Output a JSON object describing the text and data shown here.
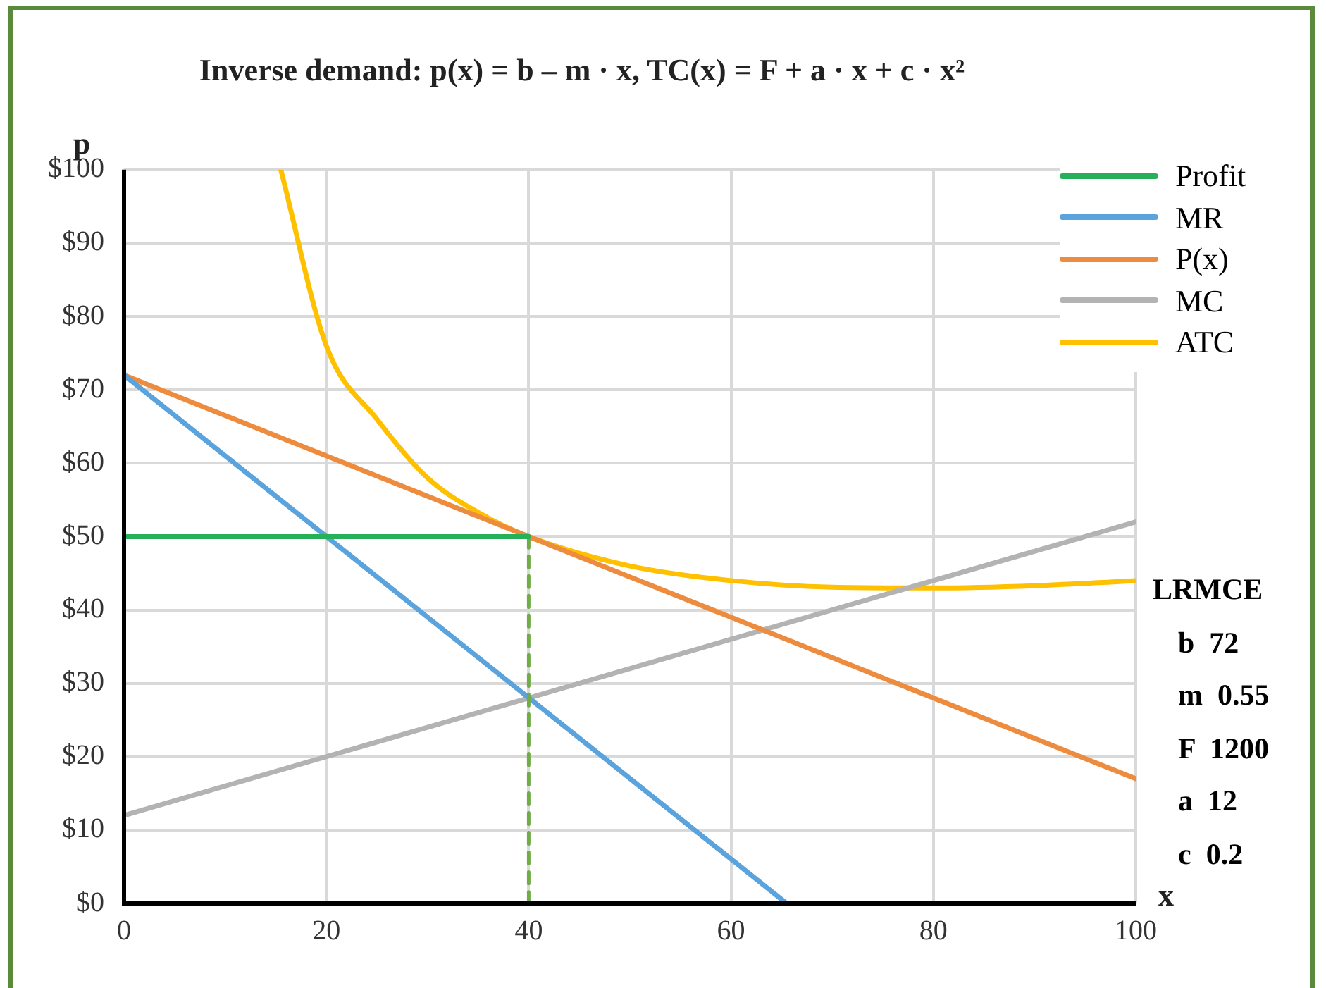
{
  "chart_data": {
    "type": "line",
    "title": "Inverse demand: p(x) = b – m · x, TC(x) = F + a · x + c · x²",
    "xlabel": "x",
    "ylabel": "p",
    "xlim": [
      0,
      100
    ],
    "xticks": [
      0,
      20,
      40,
      60,
      80,
      100
    ],
    "ylim": [
      0,
      100
    ],
    "yticks": [
      {
        "value": 0,
        "label": "$0"
      },
      {
        "value": 10,
        "label": "$10"
      },
      {
        "value": 20,
        "label": "$20"
      },
      {
        "value": 30,
        "label": "$30"
      },
      {
        "value": 40,
        "label": "$40"
      },
      {
        "value": 50,
        "label": "$50"
      },
      {
        "value": 60,
        "label": "$60"
      },
      {
        "value": 70,
        "label": "$70"
      },
      {
        "value": 80,
        "label": "$80"
      },
      {
        "value": 90,
        "label": "$90"
      },
      {
        "value": 100,
        "label": "$100"
      }
    ],
    "grid": true,
    "legend": "top right",
    "marker": "none",
    "series": [
      {
        "name": "Profit",
        "color": "#27b05a",
        "x": [
          0,
          40
        ],
        "values": [
          50,
          50
        ]
      },
      {
        "color": "#70ad47",
        "x": [
          40,
          40
        ],
        "values": [
          50,
          0
        ],
        "line_style": "dashed"
      },
      {
        "name": "MR",
        "color": "#5ba3dc",
        "x": [
          0,
          65.5
        ],
        "values": [
          72,
          0
        ]
      },
      {
        "name": "P(x)",
        "color": "#ed8b3e",
        "x": [
          0,
          100
        ],
        "values": [
          72,
          17
        ]
      },
      {
        "name": "MC",
        "color": "#b3b3b3",
        "x": [
          0,
          100
        ],
        "values": [
          12,
          52
        ]
      },
      {
        "name": "ATC",
        "color": "#ffc000",
        "x": [
          15.5,
          20,
          25,
          30,
          35,
          40,
          50,
          60,
          70,
          80,
          90,
          100
        ],
        "values": [
          100,
          76,
          66,
          58,
          53.3,
          50,
          46,
          44,
          43.1,
          43,
          43.3,
          44
        ]
      }
    ],
    "annotations": [
      "LRMCE",
      "b  72",
      "m  0.55",
      "F  1200",
      "a  12",
      "c  0.2"
    ]
  }
}
